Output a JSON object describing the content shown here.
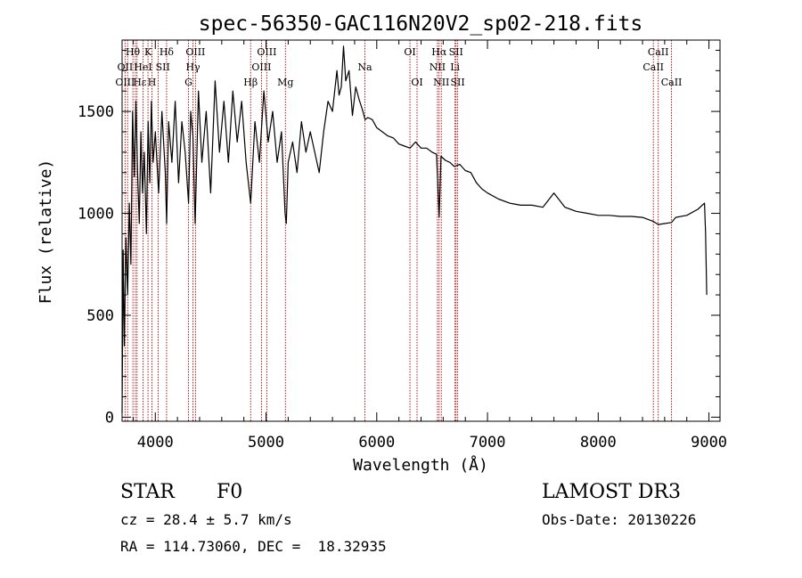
{
  "chart_data": {
    "type": "line",
    "title": "spec-56350-GAC116N20V2_sp02-218.fits",
    "xlabel": "Wavelength (Å)",
    "ylabel": "Flux (relative)",
    "xlim": [
      3700,
      9100
    ],
    "ylim": [
      -20,
      1850
    ],
    "xticks": [
      4000,
      5000,
      6000,
      7000,
      8000,
      9000
    ],
    "yticks": [
      0,
      500,
      1000,
      1500
    ],
    "series": [
      {
        "name": "spectrum",
        "x": [
          3700,
          3710,
          3720,
          3735,
          3750,
          3765,
          3780,
          3795,
          3810,
          3825,
          3840,
          3855,
          3870,
          3885,
          3900,
          3920,
          3935,
          3950,
          3965,
          3980,
          4000,
          4030,
          4060,
          4090,
          4102,
          4120,
          4150,
          4180,
          4210,
          4240,
          4270,
          4300,
          4320,
          4340,
          4360,
          4390,
          4420,
          4460,
          4500,
          4540,
          4580,
          4620,
          4660,
          4700,
          4740,
          4780,
          4820,
          4861,
          4900,
          4940,
          4980,
          5020,
          5060,
          5100,
          5140,
          5172,
          5183,
          5200,
          5240,
          5280,
          5320,
          5360,
          5400,
          5440,
          5480,
          5520,
          5560,
          5600,
          5640,
          5660,
          5680,
          5700,
          5720,
          5750,
          5780,
          5810,
          5840,
          5870,
          5895,
          5920,
          5960,
          6000,
          6050,
          6100,
          6150,
          6200,
          6250,
          6300,
          6350,
          6400,
          6450,
          6500,
          6540,
          6563,
          6580,
          6620,
          6660,
          6700,
          6750,
          6800,
          6850,
          6900,
          6950,
          7000,
          7100,
          7200,
          7300,
          7400,
          7500,
          7600,
          7700,
          7800,
          7900,
          8000,
          8100,
          8200,
          8300,
          8400,
          8500,
          8542,
          8600,
          8662,
          8700,
          8800,
          8900,
          8960,
          8970,
          8980
        ],
        "y": [
          20,
          820,
          350,
          880,
          600,
          1050,
          750,
          1500,
          1180,
          1550,
          1200,
          950,
          1400,
          1100,
          1300,
          900,
          1450,
          1150,
          1550,
          1250,
          1400,
          1100,
          1500,
          1200,
          950,
          1450,
          1250,
          1550,
          1150,
          1450,
          1300,
          1050,
          1500,
          1380,
          950,
          1600,
          1250,
          1500,
          1100,
          1650,
          1300,
          1550,
          1250,
          1600,
          1350,
          1550,
          1250,
          1050,
          1450,
          1250,
          1600,
          1350,
          1500,
          1250,
          1400,
          1000,
          950,
          1250,
          1350,
          1200,
          1450,
          1300,
          1400,
          1300,
          1200,
          1400,
          1550,
          1500,
          1700,
          1580,
          1620,
          1820,
          1650,
          1700,
          1480,
          1620,
          1560,
          1510,
          1460,
          1470,
          1460,
          1420,
          1400,
          1380,
          1370,
          1340,
          1330,
          1320,
          1350,
          1320,
          1320,
          1300,
          1290,
          980,
          1280,
          1260,
          1250,
          1230,
          1240,
          1210,
          1200,
          1150,
          1120,
          1100,
          1070,
          1050,
          1040,
          1040,
          1030,
          1100,
          1030,
          1010,
          1000,
          990,
          990,
          985,
          985,
          980,
          960,
          945,
          950,
          955,
          980,
          990,
          1020,
          1050,
          900,
          600
        ]
      }
    ],
    "lines": [
      {
        "wl": 3727,
        "color": "#b00000"
      },
      {
        "wl": 3750,
        "color": "#b00000"
      },
      {
        "wl": 3798,
        "color": "#b00000"
      },
      {
        "wl": 3820,
        "color": "#b00000"
      },
      {
        "wl": 3835,
        "color": "#b00000"
      },
      {
        "wl": 3889,
        "color": "#b00000"
      },
      {
        "wl": 3934,
        "color": "#b00000"
      },
      {
        "wl": 3970,
        "color": "#b00000"
      },
      {
        "wl": 4026,
        "color": "#b00000"
      },
      {
        "wl": 4102,
        "color": "#b00000"
      },
      {
        "wl": 4300,
        "color": "#b00000"
      },
      {
        "wl": 4340,
        "color": "#b00000"
      },
      {
        "wl": 4363,
        "color": "#b00000"
      },
      {
        "wl": 4861,
        "color": "#b00000"
      },
      {
        "wl": 4959,
        "color": "#b00000"
      },
      {
        "wl": 5007,
        "color": "#b00000"
      },
      {
        "wl": 5175,
        "color": "#b00000"
      },
      {
        "wl": 5893,
        "color": "#b00000"
      },
      {
        "wl": 6300,
        "color": "#b00000"
      },
      {
        "wl": 6364,
        "color": "#b00000"
      },
      {
        "wl": 6548,
        "color": "#b00000"
      },
      {
        "wl": 6563,
        "color": "#b00000"
      },
      {
        "wl": 6583,
        "color": "#b00000"
      },
      {
        "wl": 6707,
        "color": "#b00000"
      },
      {
        "wl": 6716,
        "color": "#b00000"
      },
      {
        "wl": 6731,
        "color": "#b00000"
      },
      {
        "wl": 8498,
        "color": "#b00000"
      },
      {
        "wl": 8542,
        "color": "#b00000"
      },
      {
        "wl": 8662,
        "color": "#b00000"
      }
    ],
    "line_labels": [
      {
        "text": "Hθ",
        "wl": 3797,
        "row": 1
      },
      {
        "text": "K",
        "wl": 3934,
        "row": 1
      },
      {
        "text": "Hδ",
        "wl": 4102,
        "row": 1
      },
      {
        "text": "OIII",
        "wl": 4363,
        "row": 1
      },
      {
        "text": "OIII",
        "wl": 5007,
        "row": 1
      },
      {
        "text": "OI",
        "wl": 6300,
        "row": 1
      },
      {
        "text": "Hα",
        "wl": 6563,
        "row": 1
      },
      {
        "text": "SII",
        "wl": 6716,
        "row": 1
      },
      {
        "text": "CaII",
        "wl": 8542,
        "row": 1
      },
      {
        "text": "OII",
        "wl": 3727,
        "row": 2
      },
      {
        "text": "HeI",
        "wl": 3889,
        "row": 2
      },
      {
        "text": "SII",
        "wl": 4068,
        "row": 2
      },
      {
        "text": "Hγ",
        "wl": 4340,
        "row": 2
      },
      {
        "text": "OIII",
        "wl": 4959,
        "row": 2
      },
      {
        "text": "Na",
        "wl": 5893,
        "row": 2
      },
      {
        "text": "NII",
        "wl": 6548,
        "row": 2
      },
      {
        "text": "Li",
        "wl": 6707,
        "row": 2
      },
      {
        "text": "CaII",
        "wl": 8498,
        "row": 2
      },
      {
        "text": "OIII",
        "wl": 3727,
        "row": 3
      },
      {
        "text": "Hε",
        "wl": 3860,
        "row": 3
      },
      {
        "text": "H",
        "wl": 3970,
        "row": 3
      },
      {
        "text": "G",
        "wl": 4300,
        "row": 3
      },
      {
        "text": "Hβ",
        "wl": 4861,
        "row": 3
      },
      {
        "text": "Mg",
        "wl": 5175,
        "row": 3
      },
      {
        "text": "OI",
        "wl": 6364,
        "row": 3
      },
      {
        "text": "NII",
        "wl": 6583,
        "row": 3
      },
      {
        "text": "SII",
        "wl": 6731,
        "row": 3
      },
      {
        "text": "CaII",
        "wl": 8662,
        "row": 3
      }
    ]
  },
  "info": {
    "object_class": "STAR",
    "subclass": "F0",
    "redshift": "cz = 28.4 ± 5.7 km/s",
    "coords": "RA = 114.73060, DEC =  18.32935",
    "survey": "LAMOST DR3",
    "obs_date": "Obs-Date: 20130226"
  }
}
